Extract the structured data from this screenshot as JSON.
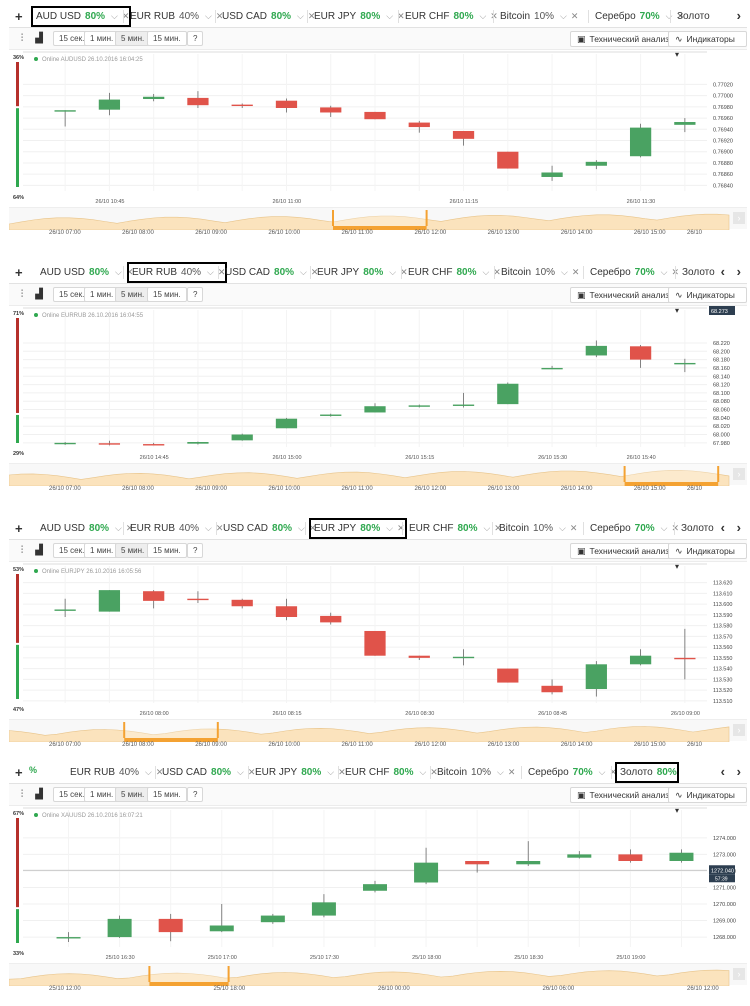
{
  "colors": {
    "up": "#4aa262",
    "down": "#e0534a",
    "accent": "#2fa84f",
    "nav_fill": "#fbe3bd",
    "nav_range": "#f4a232"
  },
  "ui": {
    "plus": "+",
    "nav_prev": "‹",
    "nav_next": "›",
    "indicator_icon": "indicator-icon",
    "bars_icon": "bars-icon",
    "tech_analysis": "Технический анализ",
    "indicators": "Индикаторы",
    "timeframes": [
      "15 сек.",
      "1 мин.",
      "5 мин.",
      "15 мин."
    ],
    "help": "?"
  },
  "panels": [
    {
      "tabs": [
        {
          "name": "AUD USD",
          "pct": "80%"
        },
        {
          "name": "EUR RUB",
          "pct": "40%"
        },
        {
          "name": "USD CAD",
          "pct": "80%"
        },
        {
          "name": "EUR JPY",
          "pct": "80%"
        },
        {
          "name": "EUR CHF",
          "pct": "80%"
        },
        {
          "name": "Bitcoin",
          "pct": "10%"
        },
        {
          "name": "Серебро",
          "pct": "70%"
        },
        {
          "name": "Золото",
          "pct": ""
        }
      ],
      "active_tab": 0,
      "online": "Online AUDUSD 26.10.2016 16:04:25",
      "sentiment_top": "36%",
      "sentiment_bottom": "64%",
      "chart_data": {
        "type": "candlestick",
        "ylim": [
          0.7683,
          0.7706
        ],
        "y_ticks": [
          "0.77020",
          "0.77000",
          "0.76980",
          "0.76960",
          "0.76940",
          "0.76920",
          "0.76900",
          "0.76880",
          "0.76860",
          "0.76840"
        ],
        "y_tick_values": [
          0.7702,
          0.77,
          0.7698,
          0.7696,
          0.7694,
          0.7692,
          0.769,
          0.7688,
          0.7686,
          0.7684
        ],
        "x_labels": [
          "26/10 10:45",
          "26/10 11:00",
          "26/10 11:15",
          "26/10 11:30",
          "26/10 11:45"
        ],
        "x_label_index": [
          1,
          5,
          9,
          13,
          17
        ],
        "candles": [
          {
            "o": 0.76974,
            "h": 0.76974,
            "l": 0.76945,
            "c": 0.76974
          },
          {
            "o": 0.76975,
            "h": 0.77005,
            "l": 0.76965,
            "c": 0.76993
          },
          {
            "o": 0.76994,
            "h": 0.77003,
            "l": 0.7699,
            "c": 0.76998
          },
          {
            "o": 0.76996,
            "h": 0.77008,
            "l": 0.76978,
            "c": 0.76983
          },
          {
            "o": 0.76984,
            "h": 0.76986,
            "l": 0.76978,
            "c": 0.76983
          },
          {
            "o": 0.76991,
            "h": 0.76995,
            "l": 0.7697,
            "c": 0.76978
          },
          {
            "o": 0.76979,
            "h": 0.76982,
            "l": 0.76962,
            "c": 0.7697
          },
          {
            "o": 0.76971,
            "h": 0.76971,
            "l": 0.76958,
            "c": 0.76958
          },
          {
            "o": 0.76952,
            "h": 0.76955,
            "l": 0.76934,
            "c": 0.76944
          },
          {
            "o": 0.76937,
            "h": 0.76937,
            "l": 0.76911,
            "c": 0.76923
          },
          {
            "o": 0.769,
            "h": 0.769,
            "l": 0.7687,
            "c": 0.7687
          },
          {
            "o": 0.76855,
            "h": 0.76875,
            "l": 0.76848,
            "c": 0.76863
          },
          {
            "o": 0.76875,
            "h": 0.76885,
            "l": 0.76869,
            "c": 0.76882
          },
          {
            "o": 0.76892,
            "h": 0.7695,
            "l": 0.7689,
            "c": 0.76943
          },
          {
            "o": 0.76948,
            "h": 0.7696,
            "l": 0.76935,
            "c": 0.76953
          }
        ]
      },
      "nav_labels": [
        "26/10 07:00",
        "26/10 08:00",
        "26/10 09:00",
        "26/10 10:00",
        "26/10 11:00",
        "26/10 12:00",
        "26/10 13:00",
        "26/10 14:00",
        "26/10 15:00",
        "26/10"
      ],
      "nav_range": [
        0.45,
        0.58
      ]
    },
    {
      "tabs": [
        {
          "name": "AUD USD",
          "pct": "80%"
        },
        {
          "name": "EUR RUB",
          "pct": "40%"
        },
        {
          "name": "USD CAD",
          "pct": "80%"
        },
        {
          "name": "EUR JPY",
          "pct": "80%"
        },
        {
          "name": "EUR CHF",
          "pct": "80%"
        },
        {
          "name": "Bitcoin",
          "pct": "10%"
        },
        {
          "name": "Серебро",
          "pct": "70%"
        },
        {
          "name": "Золото",
          "pct": ""
        }
      ],
      "active_tab": 1,
      "online": "Online EURRUB 26.10.2016 16:04:55",
      "sentiment_top": "71%",
      "sentiment_bottom": "29%",
      "price_tag": "68.273",
      "chart_data": {
        "type": "candlestick",
        "ylim": [
          67.97,
          68.28
        ],
        "y_ticks": [
          "68.220",
          "68.200",
          "68.180",
          "68.160",
          "68.140",
          "68.120",
          "68.100",
          "68.080",
          "68.060",
          "68.040",
          "68.020",
          "68.000",
          "67.980"
        ],
        "y_tick_values": [
          68.22,
          68.2,
          68.18,
          68.16,
          68.14,
          68.12,
          68.1,
          68.08,
          68.06,
          68.04,
          68.02,
          68.0,
          67.98
        ],
        "x_labels": [
          "26/10 14:45",
          "26/10 15:00",
          "26/10 15:15",
          "26/10 15:30",
          "26/10 15:40"
        ],
        "x_label_index": [
          2,
          5,
          8,
          11,
          13
        ],
        "candles": [
          {
            "o": 67.98,
            "h": 67.982,
            "l": 67.975,
            "c": 67.98
          },
          {
            "o": 67.979,
            "h": 67.985,
            "l": 67.974,
            "c": 67.978
          },
          {
            "o": 67.977,
            "h": 67.98,
            "l": 67.974,
            "c": 67.976
          },
          {
            "o": 67.978,
            "h": 67.983,
            "l": 67.976,
            "c": 67.982
          },
          {
            "o": 67.986,
            "h": 68.002,
            "l": 67.985,
            "c": 68.0
          },
          {
            "o": 68.015,
            "h": 68.04,
            "l": 68.015,
            "c": 68.038
          },
          {
            "o": 68.045,
            "h": 68.05,
            "l": 68.043,
            "c": 68.048
          },
          {
            "o": 68.053,
            "h": 68.075,
            "l": 68.053,
            "c": 68.068
          },
          {
            "o": 68.068,
            "h": 68.072,
            "l": 68.065,
            "c": 68.07
          },
          {
            "o": 68.07,
            "h": 68.1,
            "l": 68.065,
            "c": 68.072
          },
          {
            "o": 68.073,
            "h": 68.125,
            "l": 68.073,
            "c": 68.122
          },
          {
            "o": 68.158,
            "h": 68.165,
            "l": 68.157,
            "c": 68.16
          },
          {
            "o": 68.19,
            "h": 68.226,
            "l": 68.186,
            "c": 68.213
          },
          {
            "o": 68.212,
            "h": 68.215,
            "l": 68.16,
            "c": 68.18
          },
          {
            "o": 68.172,
            "h": 68.182,
            "l": 68.15,
            "c": 68.172
          }
        ]
      },
      "nav_labels": [
        "26/10 07:00",
        "26/10 08:00",
        "26/10 09:00",
        "26/10 10:00",
        "26/10 11:00",
        "26/10 12:00",
        "26/10 13:00",
        "26/10 14:00",
        "26/10 15:00",
        "26/10"
      ],
      "nav_range": [
        0.855,
        0.985
      ]
    },
    {
      "tabs": [
        {
          "name": "AUD USD",
          "pct": "80%"
        },
        {
          "name": "EUR RUB",
          "pct": "40%"
        },
        {
          "name": "USD CAD",
          "pct": "80%"
        },
        {
          "name": "EUR JPY",
          "pct": "80%"
        },
        {
          "name": "EUR CHF",
          "pct": "80%"
        },
        {
          "name": "Bitcoin",
          "pct": "10%"
        },
        {
          "name": "Серебро",
          "pct": "70%"
        },
        {
          "name": "Золото",
          "pct": ""
        }
      ],
      "active_tab": 3,
      "online": "Online EURJPY 26.10.2016 16:05:56",
      "sentiment_top": "53%",
      "sentiment_bottom": "47%",
      "chart_data": {
        "type": "candlestick",
        "ylim": [
          113.508,
          113.628
        ],
        "y_ticks": [
          "113.620",
          "113.610",
          "113.600",
          "113.590",
          "113.580",
          "113.570",
          "113.560",
          "113.550",
          "113.540",
          "113.530",
          "113.520",
          "113.510"
        ],
        "y_tick_values": [
          113.62,
          113.61,
          113.6,
          113.59,
          113.58,
          113.57,
          113.56,
          113.55,
          113.54,
          113.53,
          113.52,
          113.51
        ],
        "x_labels": [
          "26/10 08:00",
          "26/10 08:15",
          "26/10 08:30",
          "26/10 08:45",
          "26/10 09:00"
        ],
        "x_label_index": [
          2,
          5,
          8,
          11,
          14
        ],
        "candles": [
          {
            "o": 113.595,
            "h": 113.605,
            "l": 113.588,
            "c": 113.595
          },
          {
            "o": 113.593,
            "h": 113.613,
            "l": 113.593,
            "c": 113.613
          },
          {
            "o": 113.612,
            "h": 113.613,
            "l": 113.596,
            "c": 113.603
          },
          {
            "o": 113.605,
            "h": 113.612,
            "l": 113.601,
            "c": 113.604
          },
          {
            "o": 113.604,
            "h": 113.605,
            "l": 113.596,
            "c": 113.598
          },
          {
            "o": 113.598,
            "h": 113.605,
            "l": 113.585,
            "c": 113.588
          },
          {
            "o": 113.589,
            "h": 113.592,
            "l": 113.581,
            "c": 113.583
          },
          {
            "o": 113.575,
            "h": 113.575,
            "l": 113.552,
            "c": 113.552
          },
          {
            "o": 113.552,
            "h": 113.552,
            "l": 113.548,
            "c": 113.55
          },
          {
            "o": 113.551,
            "h": 113.558,
            "l": 113.543,
            "c": 113.551
          },
          {
            "o": 113.54,
            "h": 113.54,
            "l": 113.527,
            "c": 113.527
          },
          {
            "o": 113.524,
            "h": 113.53,
            "l": 113.516,
            "c": 113.518
          },
          {
            "o": 113.521,
            "h": 113.547,
            "l": 113.514,
            "c": 113.544
          },
          {
            "o": 113.544,
            "h": 113.558,
            "l": 113.543,
            "c": 113.552
          },
          {
            "o": 113.55,
            "h": 113.577,
            "l": 113.53,
            "c": 113.549
          }
        ]
      },
      "nav_labels": [
        "26/10 07:00",
        "26/10 08:00",
        "26/10 09:00",
        "26/10 10:00",
        "26/10 11:00",
        "26/10 12:00",
        "26/10 13:00",
        "26/10 14:00",
        "26/10 15:00",
        "26/10"
      ],
      "nav_range": [
        0.16,
        0.29
      ]
    },
    {
      "tabs": [
        {
          "name": "EUR RUB",
          "pct": "40%"
        },
        {
          "name": "USD CAD",
          "pct": "80%"
        },
        {
          "name": "EUR JPY",
          "pct": "80%"
        },
        {
          "name": "EUR CHF",
          "pct": "80%"
        },
        {
          "name": "Bitcoin",
          "pct": "10%"
        },
        {
          "name": "Серебро",
          "pct": "70%"
        },
        {
          "name": "Золото",
          "pct": "80%"
        }
      ],
      "active_tab": 6,
      "lead_partial": "%",
      "online": "Online XAUUSD 26.10.2016 16:07:21",
      "sentiment_top": "67%",
      "sentiment_bottom": "33%",
      "price_tag": "1272.040",
      "price_tag_sub": "57:39",
      "chart_data": {
        "type": "candlestick",
        "ylim": [
          1267.4,
          1275.2
        ],
        "y_ticks": [
          "1274.000",
          "1273.000",
          "1272.000",
          "1271.000",
          "1270.000",
          "1269.000",
          "1268.000"
        ],
        "y_tick_values": [
          1274,
          1273,
          1272,
          1271,
          1270,
          1269,
          1268
        ],
        "x_labels": [
          "25/10 16:30",
          "25/10 17:00",
          "25/10 17:30",
          "25/10 18:00",
          "25/10 18:30",
          "25/10 19:00"
        ],
        "x_label_index": [
          1,
          3,
          5,
          7,
          9,
          11
        ],
        "candles": [
          {
            "o": 1268.0,
            "h": 1268.3,
            "l": 1267.7,
            "c": 1268.0
          },
          {
            "o": 1268.0,
            "h": 1269.3,
            "l": 1267.95,
            "c": 1269.1
          },
          {
            "o": 1269.1,
            "h": 1269.4,
            "l": 1267.75,
            "c": 1268.3
          },
          {
            "o": 1268.35,
            "h": 1270.0,
            "l": 1268.3,
            "c": 1268.7
          },
          {
            "o": 1268.9,
            "h": 1269.4,
            "l": 1268.8,
            "c": 1269.3
          },
          {
            "o": 1269.3,
            "h": 1270.6,
            "l": 1269.2,
            "c": 1270.1
          },
          {
            "o": 1270.8,
            "h": 1271.4,
            "l": 1270.7,
            "c": 1271.2
          },
          {
            "o": 1271.3,
            "h": 1273.4,
            "l": 1271.2,
            "c": 1272.5
          },
          {
            "o": 1272.6,
            "h": 1272.6,
            "l": 1271.9,
            "c": 1272.4
          },
          {
            "o": 1272.4,
            "h": 1273.8,
            "l": 1272.3,
            "c": 1272.6
          },
          {
            "o": 1272.8,
            "h": 1273.2,
            "l": 1272.75,
            "c": 1273.0
          },
          {
            "o": 1273.0,
            "h": 1273.3,
            "l": 1272.5,
            "c": 1272.6
          },
          {
            "o": 1272.6,
            "h": 1273.3,
            "l": 1272.5,
            "c": 1273.1
          }
        ]
      },
      "nav_labels": [
        "25/10 12:00",
        "25/10 18:00",
        "26/10 00:00",
        "26/10 06:00",
        "26/10 12:00"
      ],
      "nav_range": [
        0.195,
        0.305
      ]
    }
  ]
}
